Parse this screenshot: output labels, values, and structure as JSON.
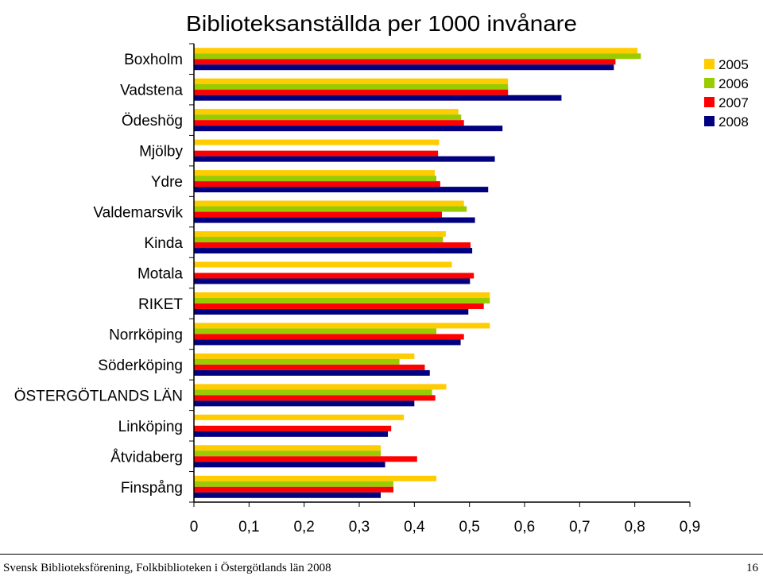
{
  "chart_data": {
    "type": "bar",
    "orientation": "horizontal",
    "title": "Biblioteksanställda per 1000 invånare",
    "categories": [
      "Boxholm",
      "Vadstena",
      "Ödeshög",
      "Mjölby",
      "Ydre",
      "Valdemarsvik",
      "Kinda",
      "Motala",
      "RIKET",
      "Norrköping",
      "Söderköping",
      "ÖSTERGÖTLANDS LÄN",
      "Linköping",
      "Åtvidaberg",
      "Finspång"
    ],
    "series": [
      {
        "name": "2005",
        "color": "#ffcc00",
        "values": [
          0.805,
          0.57,
          0.48,
          0.445,
          0.437,
          0.49,
          0.457,
          0.468,
          0.537,
          0.537,
          0.4,
          0.458,
          0.381,
          0.339,
          0.44
        ]
      },
      {
        "name": "2006",
        "color": "#99cc00",
        "values": [
          0.811,
          0.57,
          0.485,
          null,
          0.44,
          0.495,
          0.452,
          null,
          0.537,
          0.44,
          0.373,
          0.432,
          null,
          0.339,
          0.362
        ]
      },
      {
        "name": "2007",
        "color": "#ff0000",
        "values": [
          0.765,
          0.57,
          0.49,
          0.443,
          0.447,
          0.45,
          0.502,
          0.508,
          0.526,
          0.49,
          0.419,
          0.438,
          0.358,
          0.405,
          0.362
        ]
      },
      {
        "name": "2008",
        "color": "#000080",
        "values": [
          0.762,
          0.667,
          0.56,
          0.546,
          0.534,
          0.51,
          0.505,
          0.501,
          0.498,
          0.484,
          0.428,
          0.4,
          0.352,
          0.347,
          0.339
        ]
      }
    ],
    "xlim": [
      0,
      0.9
    ],
    "xticks": [
      "0",
      "0,1",
      "0,2",
      "0,3",
      "0,4",
      "0,5",
      "0,6",
      "0,7",
      "0,8",
      "0,9"
    ],
    "xtick_values": [
      0,
      0.1,
      0.2,
      0.3,
      0.4,
      0.5,
      0.6,
      0.7,
      0.8,
      0.9
    ],
    "grid": false,
    "legend_position": "top-right",
    "plot_background": "#ffffff"
  },
  "footer": {
    "source": "Svensk Biblioteksförening, Folkbiblioteken i Östergötlands län 2008",
    "page_number": "16"
  }
}
